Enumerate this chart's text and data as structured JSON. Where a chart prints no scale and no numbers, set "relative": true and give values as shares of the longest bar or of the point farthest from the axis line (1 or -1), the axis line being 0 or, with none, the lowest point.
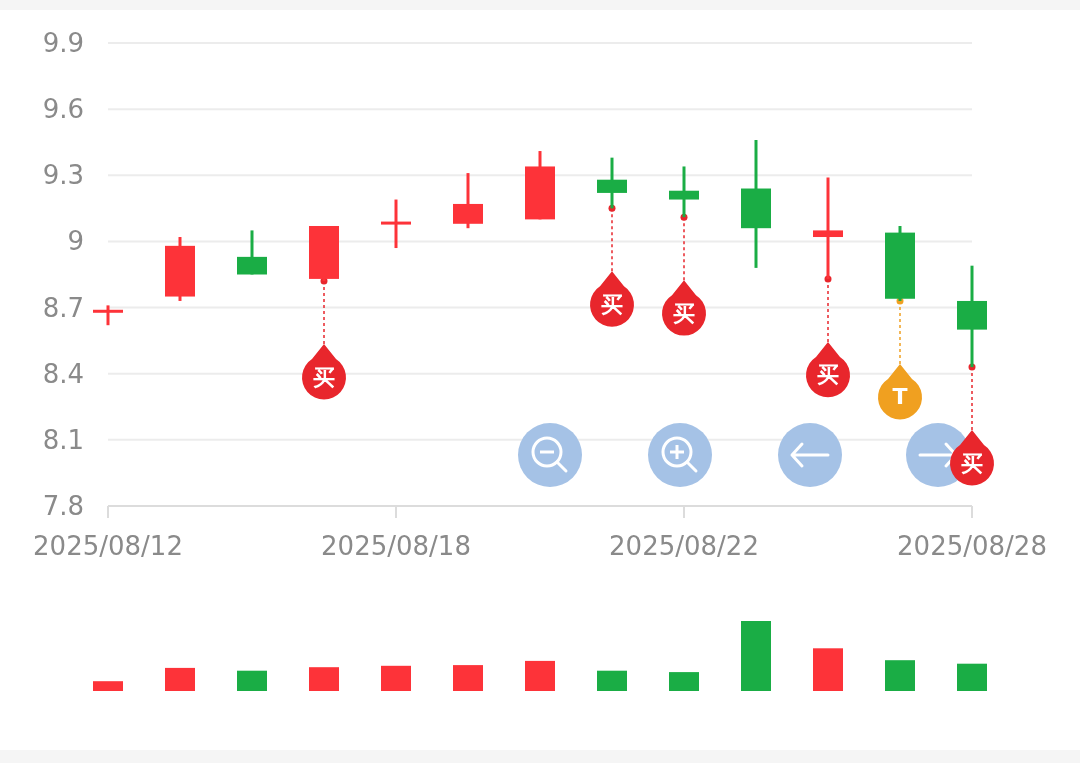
{
  "chart_data": [
    {
      "type": "candlestick",
      "categories": [
        "2025/08/12",
        null,
        null,
        null,
        "2025/08/18",
        null,
        null,
        null,
        "2025/08/22",
        null,
        null,
        null,
        "2025/08/28"
      ],
      "ohlc": [
        [
          8.68,
          8.71,
          8.62,
          8.69
        ],
        [
          8.75,
          9.02,
          8.73,
          8.98
        ],
        [
          8.93,
          9.05,
          8.85,
          8.85
        ],
        [
          8.83,
          9.07,
          8.82,
          9.07
        ],
        [
          9.08,
          9.19,
          8.97,
          9.09
        ],
        [
          9.08,
          9.31,
          9.06,
          9.17
        ],
        [
          9.1,
          9.41,
          9.1,
          9.34
        ],
        [
          9.28,
          9.38,
          9.15,
          9.22
        ],
        [
          9.23,
          9.34,
          9.11,
          9.19
        ],
        [
          9.24,
          9.46,
          8.88,
          9.06
        ],
        [
          9.02,
          9.29,
          8.83,
          9.05
        ],
        [
          9.04,
          9.07,
          8.73,
          8.74
        ],
        [
          8.73,
          8.89,
          8.43,
          8.6
        ]
      ],
      "colors": [
        "#fd3339",
        "#fd3339",
        "#1aad45",
        "#fd3339",
        "#fd3339",
        "#fd3339",
        "#fd3339",
        "#1aad45",
        "#1aad45",
        "#1aad45",
        "#fd3339",
        "#1aad45",
        "#1aad45"
      ],
      "series": [
        {
          "type": "scatter",
          "color": "#e8262c",
          "values": [
            null,
            null,
            null,
            8.82,
            null,
            null,
            null,
            9.15,
            9.11,
            null,
            8.83,
            null,
            8.43
          ],
          "value_labels": [
            null,
            null,
            null,
            "买",
            null,
            null,
            null,
            "买",
            "买",
            null,
            "买",
            null,
            "买"
          ]
        },
        {
          "type": "scatter",
          "color": "#f0a020",
          "values": [
            null,
            null,
            null,
            null,
            null,
            null,
            null,
            null,
            null,
            null,
            null,
            8.73,
            null
          ],
          "value_labels": [
            null,
            null,
            null,
            null,
            null,
            null,
            null,
            null,
            null,
            null,
            null,
            "T",
            null
          ]
        }
      ],
      "ylim": [
        7.8,
        9.9
      ],
      "yticks": [
        7.8,
        8.1,
        8.4,
        8.7,
        9,
        9.3,
        9.6,
        9.9
      ],
      "grid": "y"
    },
    {
      "type": "bar",
      "relative": true,
      "categories": [
        null,
        null,
        null,
        null,
        null,
        null,
        null,
        null,
        null,
        null,
        null,
        null,
        null
      ],
      "values": [
        0.14,
        0.33,
        0.29,
        0.34,
        0.36,
        0.37,
        0.43,
        0.29,
        0.27,
        1,
        0.61,
        0.44,
        0.39
      ],
      "colors": [
        "#fd3339",
        "#fd3339",
        "#1aad45",
        "#fd3339",
        "#fd3339",
        "#fd3339",
        "#fd3339",
        "#1aad45",
        "#1aad45",
        "#1aad45",
        "#fd3339",
        "#1aad45",
        "#1aad45"
      ]
    }
  ]
}
